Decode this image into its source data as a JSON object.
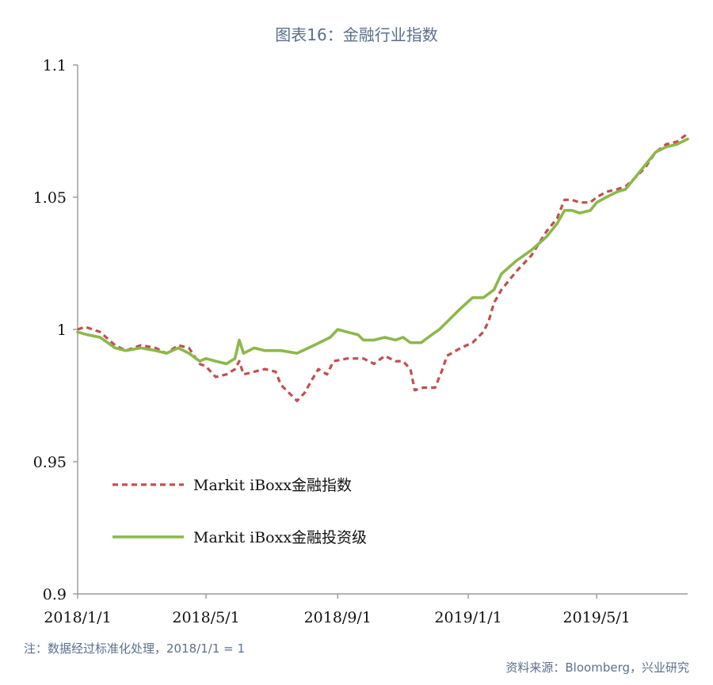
{
  "title": "图表16：金融行业指数",
  "note": "注：数据经过标准化处理，2018/1/1 = 1",
  "source": "资料来源：Bloomberg，兴业研究",
  "colors": {
    "series1": "#c0504d",
    "series2": "#8cb84a",
    "axis": "#888888",
    "text": "#5b6f8c"
  },
  "chart_data": {
    "type": "line",
    "ylim": [
      0.9,
      1.1
    ],
    "yticks": [
      0.9,
      0.95,
      1,
      1.05,
      1.1
    ],
    "ytick_labels": [
      "0.9",
      "0.95",
      "1",
      "1.05",
      "1.1"
    ],
    "xlim": [
      "2018-01-01",
      "2019-07-25"
    ],
    "xticks": [
      "2018-01-01",
      "2018-05-01",
      "2018-09-01",
      "2019-01-01",
      "2019-05-01"
    ],
    "xtick_labels": [
      "2018/1/1",
      "2018/5/1",
      "2018/9/1",
      "2019/1/1",
      "2019/5/1"
    ],
    "grid": false,
    "legend_position": "lower-left",
    "series": [
      {
        "name": "Markit iBoxx金融指数",
        "style": "dashed",
        "color": "#c0504d",
        "points": [
          [
            "2018-01-01",
            1.0
          ],
          [
            "2018-01-08",
            1.001
          ],
          [
            "2018-01-22",
            0.999
          ],
          [
            "2018-02-05",
            0.994
          ],
          [
            "2018-02-15",
            0.992
          ],
          [
            "2018-03-01",
            0.994
          ],
          [
            "2018-03-15",
            0.993
          ],
          [
            "2018-03-25",
            0.991
          ],
          [
            "2018-04-05",
            0.994
          ],
          [
            "2018-04-15",
            0.993
          ],
          [
            "2018-04-25",
            0.987
          ],
          [
            "2018-05-01",
            0.986
          ],
          [
            "2018-05-10",
            0.982
          ],
          [
            "2018-05-20",
            0.983
          ],
          [
            "2018-05-28",
            0.985
          ],
          [
            "2018-06-01",
            0.988
          ],
          [
            "2018-06-05",
            0.983
          ],
          [
            "2018-06-15",
            0.984
          ],
          [
            "2018-06-25",
            0.985
          ],
          [
            "2018-07-05",
            0.984
          ],
          [
            "2018-07-10",
            0.979
          ],
          [
            "2018-07-20",
            0.975
          ],
          [
            "2018-07-25",
            0.973
          ],
          [
            "2018-08-01",
            0.976
          ],
          [
            "2018-08-08",
            0.981
          ],
          [
            "2018-08-14",
            0.985
          ],
          [
            "2018-08-22",
            0.983
          ],
          [
            "2018-08-28",
            0.988
          ],
          [
            "2018-09-10",
            0.989
          ],
          [
            "2018-09-25",
            0.989
          ],
          [
            "2018-10-05",
            0.987
          ],
          [
            "2018-10-15",
            0.99
          ],
          [
            "2018-10-25",
            0.988
          ],
          [
            "2018-11-01",
            0.988
          ],
          [
            "2018-11-08",
            0.985
          ],
          [
            "2018-11-12",
            0.977
          ],
          [
            "2018-11-20",
            0.978
          ],
          [
            "2018-12-01",
            0.978
          ],
          [
            "2018-12-08",
            0.985
          ],
          [
            "2018-12-12",
            0.99
          ],
          [
            "2018-12-25",
            0.993
          ],
          [
            "2019-01-05",
            0.995
          ],
          [
            "2019-01-15",
            0.999
          ],
          [
            "2019-01-20",
            1.003
          ],
          [
            "2019-01-25",
            1.01
          ],
          [
            "2019-02-01",
            1.015
          ],
          [
            "2019-02-15",
            1.022
          ],
          [
            "2019-03-01",
            1.028
          ],
          [
            "2019-03-15",
            1.037
          ],
          [
            "2019-03-25",
            1.042
          ],
          [
            "2019-04-01",
            1.049
          ],
          [
            "2019-04-08",
            1.049
          ],
          [
            "2019-04-15",
            1.048
          ],
          [
            "2019-04-25",
            1.048
          ],
          [
            "2019-05-01",
            1.05
          ],
          [
            "2019-05-10",
            1.052
          ],
          [
            "2019-05-20",
            1.053
          ],
          [
            "2019-05-28",
            1.054
          ],
          [
            "2019-06-05",
            1.057
          ],
          [
            "2019-06-15",
            1.061
          ],
          [
            "2019-06-25",
            1.067
          ],
          [
            "2019-07-05",
            1.07
          ],
          [
            "2019-07-15",
            1.071
          ],
          [
            "2019-07-25",
            1.074
          ]
        ]
      },
      {
        "name": "Markit iBoxx金融投资级",
        "style": "solid",
        "color": "#8cb84a",
        "points": [
          [
            "2018-01-01",
            0.999
          ],
          [
            "2018-01-10",
            0.998
          ],
          [
            "2018-01-22",
            0.997
          ],
          [
            "2018-02-05",
            0.993
          ],
          [
            "2018-02-15",
            0.992
          ],
          [
            "2018-03-01",
            0.993
          ],
          [
            "2018-03-15",
            0.992
          ],
          [
            "2018-03-25",
            0.991
          ],
          [
            "2018-04-05",
            0.993
          ],
          [
            "2018-04-15",
            0.991
          ],
          [
            "2018-04-25",
            0.988
          ],
          [
            "2018-05-01",
            0.989
          ],
          [
            "2018-05-10",
            0.988
          ],
          [
            "2018-05-20",
            0.987
          ],
          [
            "2018-05-28",
            0.989
          ],
          [
            "2018-06-01",
            0.996
          ],
          [
            "2018-06-05",
            0.991
          ],
          [
            "2018-06-15",
            0.993
          ],
          [
            "2018-06-25",
            0.992
          ],
          [
            "2018-07-10",
            0.992
          ],
          [
            "2018-07-25",
            0.991
          ],
          [
            "2018-08-10",
            0.994
          ],
          [
            "2018-08-25",
            0.997
          ],
          [
            "2018-09-01",
            1.0
          ],
          [
            "2018-09-10",
            0.999
          ],
          [
            "2018-09-20",
            0.998
          ],
          [
            "2018-09-25",
            0.996
          ],
          [
            "2018-10-05",
            0.996
          ],
          [
            "2018-10-15",
            0.997
          ],
          [
            "2018-10-25",
            0.996
          ],
          [
            "2018-11-01",
            0.997
          ],
          [
            "2018-11-08",
            0.995
          ],
          [
            "2018-11-18",
            0.995
          ],
          [
            "2018-11-28",
            0.998
          ],
          [
            "2018-12-05",
            1.0
          ],
          [
            "2018-12-15",
            1.004
          ],
          [
            "2018-12-25",
            1.008
          ],
          [
            "2019-01-05",
            1.012
          ],
          [
            "2019-01-15",
            1.012
          ],
          [
            "2019-01-25",
            1.015
          ],
          [
            "2019-02-01",
            1.021
          ],
          [
            "2019-02-15",
            1.026
          ],
          [
            "2019-03-01",
            1.03
          ],
          [
            "2019-03-15",
            1.035
          ],
          [
            "2019-03-25",
            1.04
          ],
          [
            "2019-04-01",
            1.045
          ],
          [
            "2019-04-08",
            1.045
          ],
          [
            "2019-04-15",
            1.044
          ],
          [
            "2019-04-25",
            1.045
          ],
          [
            "2019-05-01",
            1.048
          ],
          [
            "2019-05-10",
            1.05
          ],
          [
            "2019-05-20",
            1.052
          ],
          [
            "2019-05-28",
            1.053
          ],
          [
            "2019-06-05",
            1.057
          ],
          [
            "2019-06-15",
            1.062
          ],
          [
            "2019-06-25",
            1.067
          ],
          [
            "2019-07-05",
            1.069
          ],
          [
            "2019-07-15",
            1.07
          ],
          [
            "2019-07-25",
            1.072
          ]
        ]
      }
    ]
  }
}
